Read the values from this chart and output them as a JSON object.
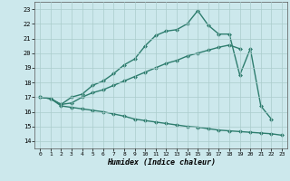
{
  "title": "",
  "xlabel": "Humidex (Indice chaleur)",
  "ylabel": "",
  "background_color": "#cce8ec",
  "grid_color": "#aacccc",
  "line_color": "#2e7d6e",
  "xlim": [
    -0.5,
    23.5
  ],
  "ylim": [
    13.5,
    23.5
  ],
  "xticks": [
    0,
    1,
    2,
    3,
    4,
    5,
    6,
    7,
    8,
    9,
    10,
    11,
    12,
    13,
    14,
    15,
    16,
    17,
    18,
    19,
    20,
    21,
    22,
    23
  ],
  "yticks": [
    14,
    15,
    16,
    17,
    18,
    19,
    20,
    21,
    22,
    23
  ],
  "line1_x": [
    0,
    1,
    2,
    3,
    4,
    5,
    6,
    7,
    8,
    9,
    10,
    11,
    12,
    13,
    14,
    15,
    16,
    17,
    18,
    19,
    20,
    21,
    22,
    23
  ],
  "line1_y": [
    17.0,
    16.9,
    16.4,
    16.3,
    16.2,
    16.1,
    16.0,
    15.85,
    15.7,
    15.5,
    15.4,
    15.3,
    15.2,
    15.1,
    15.0,
    14.95,
    14.85,
    14.75,
    14.7,
    14.65,
    14.6,
    14.55,
    14.5,
    14.4
  ],
  "line2_x": [
    0,
    1,
    2,
    3,
    4,
    5,
    6,
    7,
    8,
    9,
    10,
    11,
    12,
    13,
    14,
    15,
    16,
    17,
    18,
    19,
    20,
    21,
    22,
    23
  ],
  "line2_y": [
    17.0,
    16.9,
    16.5,
    16.6,
    17.0,
    17.3,
    17.5,
    17.8,
    18.1,
    18.4,
    18.7,
    19.0,
    19.3,
    19.5,
    19.8,
    20.0,
    20.2,
    20.4,
    20.55,
    20.3,
    null,
    null,
    null,
    null
  ],
  "line3_x": [
    0,
    1,
    2,
    3,
    4,
    5,
    6,
    7,
    8,
    9,
    10,
    11,
    12,
    13,
    14,
    15,
    16,
    17,
    18,
    19,
    20,
    21,
    22,
    23
  ],
  "line3_y": [
    17.0,
    16.9,
    16.5,
    17.0,
    17.2,
    17.8,
    18.1,
    18.6,
    19.2,
    19.6,
    20.5,
    21.2,
    21.5,
    21.6,
    22.0,
    22.9,
    21.9,
    21.3,
    21.3,
    18.5,
    20.3,
    16.4,
    15.5,
    null
  ],
  "marker": "D",
  "marker_size": 2.5,
  "line_width": 1.0
}
